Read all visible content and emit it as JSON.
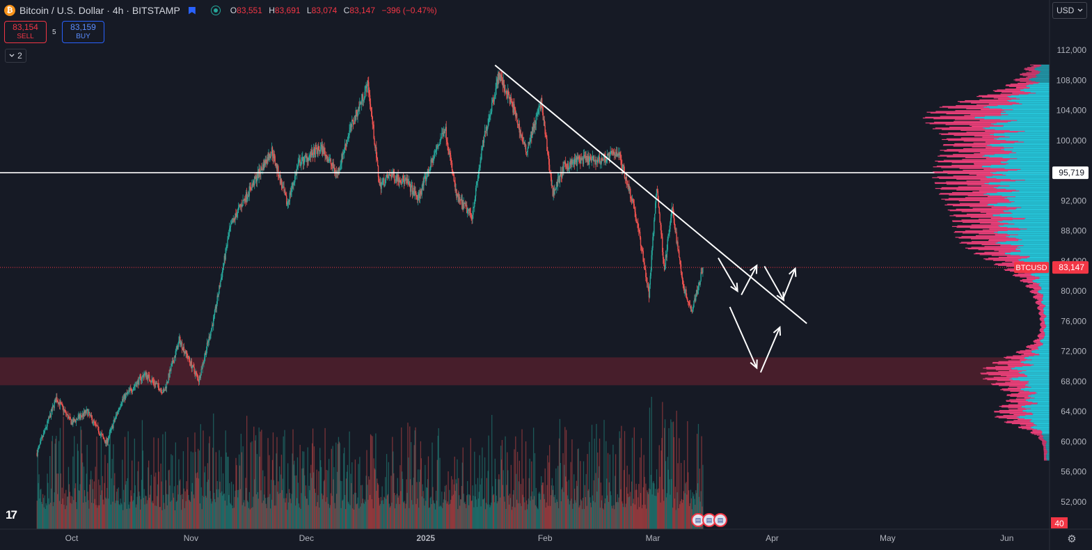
{
  "header": {
    "symbol_title": "Bitcoin / U.S. Dollar · 4h · BITSTAMP",
    "coin_glyph": "₿",
    "ohlc": {
      "o_label": "O",
      "o": "83,551",
      "h_label": "H",
      "h": "83,691",
      "l_label": "L",
      "l": "83,074",
      "c_label": "C",
      "c": "83,147",
      "change": "−396 (−0.47%)"
    }
  },
  "trade": {
    "sell_price": "83,154",
    "sell_label": "SELL",
    "spread": "5",
    "buy_price": "83,159",
    "buy_label": "BUY"
  },
  "indicators_toggle": {
    "count": "2",
    "icon": "chevron-down-icon"
  },
  "currency_select": {
    "value": "USD"
  },
  "tv_logo": "17",
  "event_markers": [
    "us-flag-icon",
    "us-flag-icon",
    "us-flag-icon"
  ],
  "colors": {
    "background": "#161a25",
    "up": "#26a69a",
    "down": "#ef5350",
    "profile_value_area": "#26c6da",
    "profile_outside": "#ec407a",
    "zone": "#4a1f2b",
    "last_price": "#f23645",
    "annotation": "#ffffff"
  },
  "chart_data": {
    "type": "candlestick",
    "symbol": "BTCUSD",
    "timeframe": "4h",
    "x_ticks": [
      "Oct",
      "Nov",
      "Dec",
      "2025",
      "Feb",
      "Mar",
      "Apr",
      "May",
      "Jun"
    ],
    "y_ticks": [
      112000,
      108000,
      104000,
      100000,
      96000,
      92000,
      88000,
      84000,
      80000,
      76000,
      72000,
      68000,
      64000,
      60000,
      56000,
      52000
    ],
    "y_tick_labels": [
      "112,000",
      "108,000",
      "104,000",
      "100,000",
      "",
      "92,000",
      "88,000",
      "84,000",
      "80,000",
      "76,000",
      "72,000",
      "68,000",
      "64,000",
      "60,000",
      "56,000",
      "52,000"
    ],
    "ylim": [
      48400,
      114600
    ],
    "price_path": [
      {
        "t": "2024-09-22",
        "p": 58500
      },
      {
        "t": "2024-09-27",
        "p": 65800
      },
      {
        "t": "2024-10-01",
        "p": 62500
      },
      {
        "t": "2024-10-05",
        "p": 64000
      },
      {
        "t": "2024-10-10",
        "p": 59800
      },
      {
        "t": "2024-10-14",
        "p": 65500
      },
      {
        "t": "2024-10-20",
        "p": 69000
      },
      {
        "t": "2024-10-25",
        "p": 66600
      },
      {
        "t": "2024-10-29",
        "p": 73500
      },
      {
        "t": "2024-11-03",
        "p": 68200
      },
      {
        "t": "2024-11-07",
        "p": 76500
      },
      {
        "t": "2024-11-11",
        "p": 88000
      },
      {
        "t": "2024-11-13",
        "p": 90500
      },
      {
        "t": "2024-11-22",
        "p": 98700
      },
      {
        "t": "2024-11-26",
        "p": 91500
      },
      {
        "t": "2024-11-29",
        "p": 97000
      },
      {
        "t": "2024-12-05",
        "p": 99000
      },
      {
        "t": "2024-12-09",
        "p": 95500
      },
      {
        "t": "2024-12-12",
        "p": 101000
      },
      {
        "t": "2024-12-17",
        "p": 107500
      },
      {
        "t": "2024-12-20",
        "p": 94000
      },
      {
        "t": "2024-12-23",
        "p": 95500
      },
      {
        "t": "2024-12-27",
        "p": 94500
      },
      {
        "t": "2024-12-30",
        "p": 92300
      },
      {
        "t": "2025-01-06",
        "p": 101800
      },
      {
        "t": "2025-01-09",
        "p": 92500
      },
      {
        "t": "2025-01-13",
        "p": 90000
      },
      {
        "t": "2025-01-16",
        "p": 100000
      },
      {
        "t": "2025-01-20",
        "p": 108800
      },
      {
        "t": "2025-01-24",
        "p": 104000
      },
      {
        "t": "2025-01-27",
        "p": 98500
      },
      {
        "t": "2025-01-31",
        "p": 105000
      },
      {
        "t": "2025-02-03",
        "p": 93000
      },
      {
        "t": "2025-02-06",
        "p": 96500
      },
      {
        "t": "2025-02-10",
        "p": 97500
      },
      {
        "t": "2025-02-15",
        "p": 97300
      },
      {
        "t": "2025-02-20",
        "p": 98500
      },
      {
        "t": "2025-02-24",
        "p": 91500
      },
      {
        "t": "2025-02-26",
        "p": 86000
      },
      {
        "t": "2025-02-28",
        "p": 79500
      },
      {
        "t": "2025-03-02",
        "p": 94000
      },
      {
        "t": "2025-03-04",
        "p": 83000
      },
      {
        "t": "2025-03-06",
        "p": 91000
      },
      {
        "t": "2025-03-09",
        "p": 80500
      },
      {
        "t": "2025-03-11",
        "p": 77500
      },
      {
        "t": "2025-03-13",
        "p": 81000
      },
      {
        "t": "2025-03-14",
        "p": 83147
      }
    ],
    "last_price": {
      "label": "BTCUSD",
      "value": 83147,
      "text": "83,147"
    },
    "horizontal_line": {
      "value": 95719,
      "text": "95,719"
    },
    "zone": {
      "from": 67500,
      "to": 71200
    },
    "trendline": {
      "from": {
        "t": "2025-01-19",
        "p": 110000
      },
      "to": {
        "t": "2025-04-10",
        "p": 75700
      }
    },
    "projection_arrows": [
      {
        "from": {
          "t": "2025-03-18",
          "p": 84400
        },
        "to": {
          "t": "2025-03-23",
          "p": 80000
        }
      },
      {
        "from": {
          "t": "2025-03-24",
          "p": 79500
        },
        "to": {
          "t": "2025-03-28",
          "p": 83400
        }
      },
      {
        "from": {
          "t": "2025-03-30",
          "p": 83300
        },
        "to": {
          "t": "2025-04-04",
          "p": 78800
        }
      },
      {
        "from": {
          "t": "2025-04-04",
          "p": 79200
        },
        "to": {
          "t": "2025-04-07",
          "p": 83000
        }
      },
      {
        "from": {
          "t": "2025-03-21",
          "p": 77900
        },
        "to": {
          "t": "2025-03-28",
          "p": 69800
        }
      },
      {
        "from": {
          "t": "2025-03-29",
          "p": 69200
        },
        "to": {
          "t": "2025-04-03",
          "p": 75200
        }
      }
    ],
    "volume_profile": {
      "poc": 95500,
      "value_area": [
        61000,
        107600
      ],
      "range": [
        57500,
        110000
      ]
    },
    "volume_axis_label": "40",
    "grid": false
  }
}
